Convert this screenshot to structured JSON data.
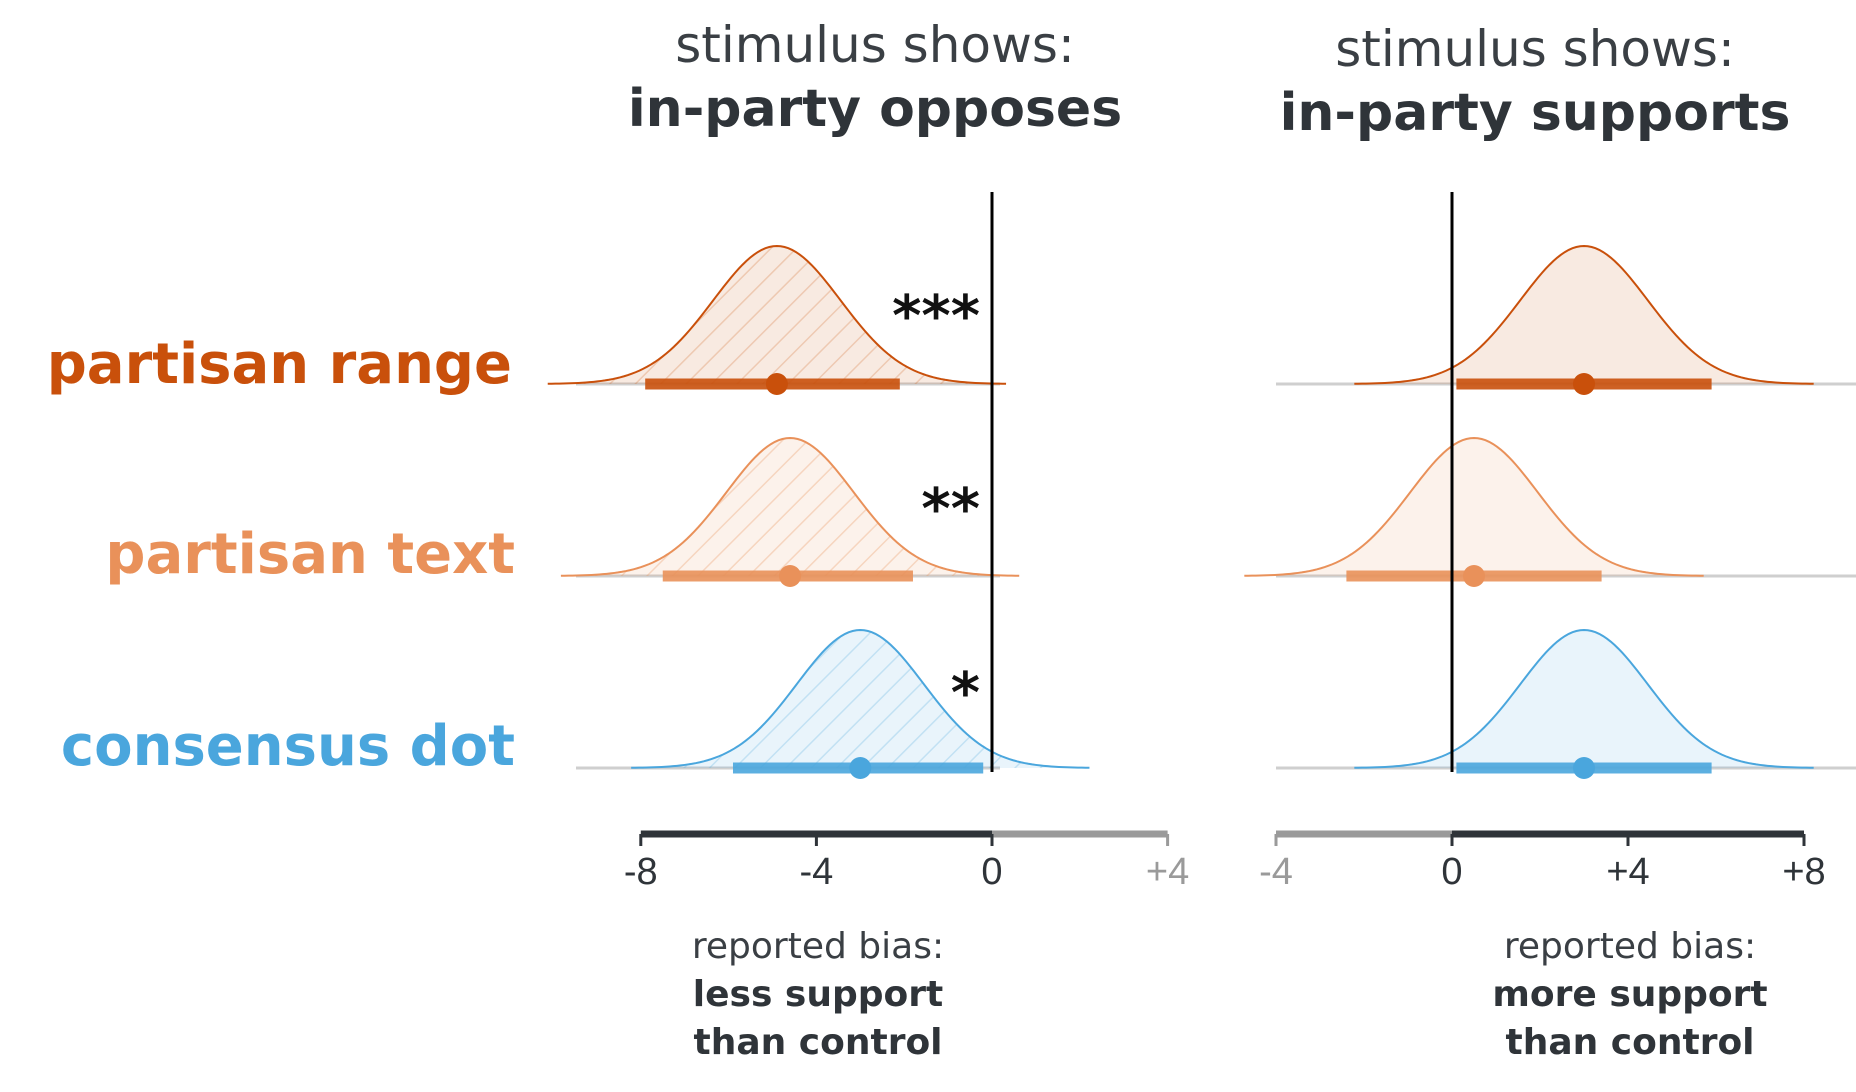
{
  "chart_data": {
    "type": "interval",
    "colors": {
      "partisan_range": "#c9500b",
      "partisan_text": "#e9915a",
      "consensus_dot": "#4aa6dd",
      "axis_dark": "#2f3439",
      "axis_light": "#9a9a9a",
      "baseline": "#cfcfcf",
      "zero_line": "#000000"
    },
    "rows": [
      {
        "key": "partisan_range",
        "label": "partisan range"
      },
      {
        "key": "partisan_text",
        "label": "partisan text"
      },
      {
        "key": "consensus_dot",
        "label": "consensus dot"
      }
    ],
    "panels": [
      {
        "title_line1": "stimulus shows:",
        "title_line2": "in-party opposes",
        "xlim": [
          -10,
          5
        ],
        "ticks": [
          {
            "value": -8,
            "label": "-8",
            "muted": false
          },
          {
            "value": -4,
            "label": "-4",
            "muted": false
          },
          {
            "value": 0,
            "label": "0",
            "muted": false
          },
          {
            "value": 4,
            "label": "+4",
            "muted": true
          }
        ],
        "axis_dark_range": [
          -8,
          0
        ],
        "axis_light_range": [
          0,
          4
        ],
        "caption_line1": "reported bias:",
        "caption_line2": "less support",
        "caption_line3": "than control",
        "hatched": true,
        "series": [
          {
            "row": "partisan_range",
            "mean": -4.9,
            "ci": [
              -7.9,
              -2.1
            ],
            "sd": 1.45,
            "significance": "***"
          },
          {
            "row": "partisan_text",
            "mean": -4.6,
            "ci": [
              -7.5,
              -1.8
            ],
            "sd": 1.45,
            "significance": "**"
          },
          {
            "row": "consensus_dot",
            "mean": -3.0,
            "ci": [
              -5.9,
              -0.2
            ],
            "sd": 1.45,
            "significance": "*"
          }
        ]
      },
      {
        "title_line1": "stimulus shows:",
        "title_line2": "in-party supports",
        "xlim": [
          -4.5,
          9.5
        ],
        "ticks": [
          {
            "value": -4,
            "label": "-4",
            "muted": true
          },
          {
            "value": 0,
            "label": "0",
            "muted": false
          },
          {
            "value": 4,
            "label": "+4",
            "muted": false
          },
          {
            "value": 8,
            "label": "+8",
            "muted": false
          }
        ],
        "axis_dark_range": [
          0,
          8
        ],
        "axis_light_range": [
          -4,
          0
        ],
        "caption_line1": "reported bias:",
        "caption_line2": "more support",
        "caption_line3": "than control",
        "hatched": false,
        "series": [
          {
            "row": "partisan_range",
            "mean": 3.0,
            "ci": [
              0.1,
              5.9
            ],
            "sd": 1.45,
            "significance": ""
          },
          {
            "row": "partisan_text",
            "mean": 0.5,
            "ci": [
              -2.4,
              3.4
            ],
            "sd": 1.45,
            "significance": ""
          },
          {
            "row": "consensus_dot",
            "mean": 3.0,
            "ci": [
              0.1,
              5.9
            ],
            "sd": 1.45,
            "significance": ""
          }
        ]
      }
    ]
  }
}
